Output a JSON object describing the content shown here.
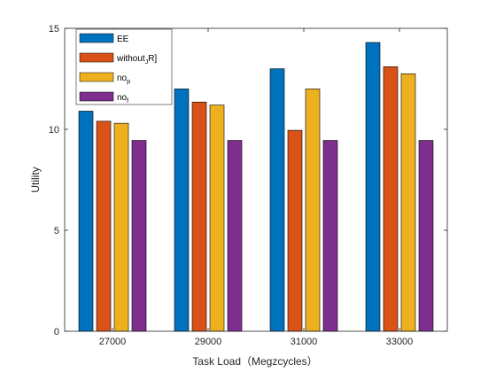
{
  "chart_data": {
    "type": "bar",
    "categories": [
      "27000",
      "29000",
      "31000",
      "33000"
    ],
    "series": [
      {
        "name": "EE",
        "name_sub": "",
        "name_tail": "",
        "color": "#0072BD",
        "values": [
          10.9,
          12.0,
          13.0,
          14.3
        ]
      },
      {
        "name": "without",
        "name_sub": "J",
        "name_tail": "R]",
        "color": "#D95319",
        "values": [
          10.4,
          11.35,
          9.95,
          13.1
        ]
      },
      {
        "name": "no",
        "name_sub": "p",
        "name_tail": "",
        "color": "#EDB120",
        "values": [
          10.3,
          11.2,
          12.0,
          12.75
        ]
      },
      {
        "name": "no",
        "name_sub": "f",
        "name_tail": "",
        "color": "#7E2F8E",
        "values": [
          9.45,
          9.45,
          9.45,
          9.45
        ]
      }
    ],
    "yticks": [
      "0",
      "5",
      "10",
      "15"
    ],
    "ylim": [
      0,
      15
    ],
    "xlabel": "Task Load（Megzcycles）",
    "ylabel": "Utility",
    "legend_position": "top-left",
    "grid": false
  }
}
